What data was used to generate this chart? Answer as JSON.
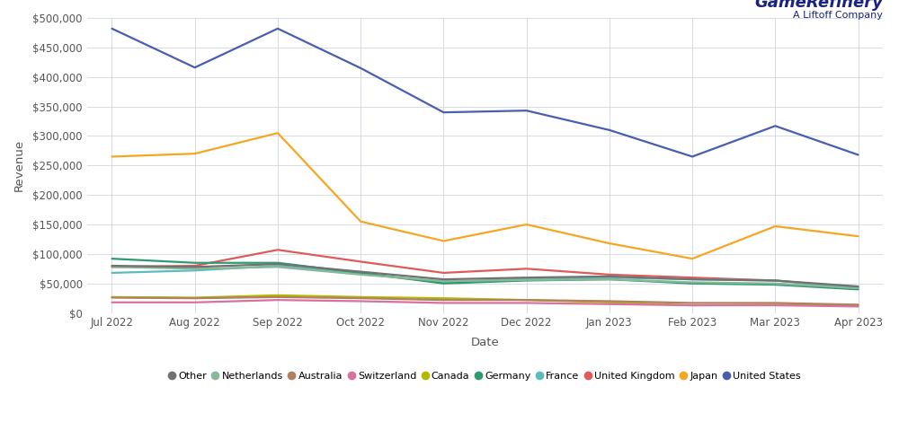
{
  "x_labels": [
    "Jul 2022",
    "Aug 2022",
    "Sep 2022",
    "Oct 2022",
    "Nov 2022",
    "Dec 2022",
    "Jan 2023",
    "Feb 2023",
    "Mar 2023",
    "Apr 2023"
  ],
  "series": {
    "United States": {
      "color": "#4a5eb0",
      "values": [
        482000,
        416000,
        482000,
        415000,
        340000,
        343000,
        310000,
        265000,
        317000,
        268000
      ]
    },
    "Japan": {
      "color": "#f5a623",
      "values": [
        265000,
        270000,
        305000,
        155000,
        122000,
        150000,
        118000,
        92000,
        147000,
        130000
      ]
    },
    "United Kingdom": {
      "color": "#e05a5a",
      "values": [
        78000,
        80000,
        107000,
        87000,
        68000,
        75000,
        65000,
        60000,
        55000,
        42000
      ]
    },
    "France": {
      "color": "#5bbcbf",
      "values": [
        68000,
        72000,
        80000,
        67000,
        52000,
        58000,
        60000,
        57000,
        55000,
        43000
      ]
    },
    "Germany": {
      "color": "#2d9b6f",
      "values": [
        92000,
        85000,
        85000,
        68000,
        50000,
        55000,
        57000,
        50000,
        48000,
        40000
      ]
    },
    "Canada": {
      "color": "#b5b800",
      "values": [
        27000,
        26000,
        30000,
        27000,
        25000,
        22000,
        18000,
        13000,
        14000,
        13000
      ]
    },
    "Switzerland": {
      "color": "#d971a0",
      "values": [
        18000,
        18000,
        22000,
        20000,
        17000,
        17000,
        15000,
        13000,
        13000,
        11000
      ]
    },
    "Australia": {
      "color": "#b08060",
      "values": [
        26000,
        25000,
        27000,
        25000,
        22000,
        22000,
        20000,
        17000,
        17000,
        14000
      ]
    },
    "Netherlands": {
      "color": "#88b898",
      "values": [
        78000,
        75000,
        78000,
        65000,
        54000,
        56000,
        57000,
        52000,
        50000,
        42000
      ]
    },
    "Other": {
      "color": "#717171",
      "values": [
        80000,
        78000,
        83000,
        70000,
        57000,
        60000,
        62000,
        57000,
        55000,
        45000
      ]
    }
  },
  "xlabel": "Date",
  "ylabel": "Revenue",
  "ylim": [
    0,
    500000
  ],
  "yticks": [
    0,
    50000,
    100000,
    150000,
    200000,
    250000,
    300000,
    350000,
    400000,
    450000,
    500000
  ],
  "background_color": "#ffffff",
  "grid_color": "#d5dce8",
  "legend_order": [
    "Other",
    "Netherlands",
    "Australia",
    "Switzerland",
    "Canada",
    "Germany",
    "France",
    "United Kingdom",
    "Japan",
    "United States"
  ],
  "logo_line1": "GameRefinery",
  "logo_line2": "A Liftoff Company",
  "logo_color": "#1a237e"
}
